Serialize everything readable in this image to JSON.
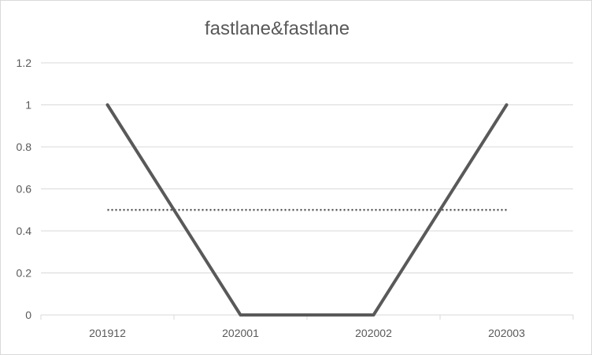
{
  "chart_data": {
    "type": "line",
    "title": "fastlane&fastlane",
    "xlabel": "",
    "ylabel": "",
    "categories": [
      "201912",
      "202001",
      "202002",
      "202003"
    ],
    "series": [
      {
        "values": [
          1,
          0,
          0,
          1
        ],
        "color": "#595959",
        "style": "solid"
      },
      {
        "values": [
          0.5,
          0.5,
          0.5,
          0.5
        ],
        "color": "#595959",
        "style": "dotted"
      }
    ],
    "ylim": [
      0,
      1.2
    ],
    "yticks": [
      "0",
      "0.2",
      "0.4",
      "0.6",
      "0.8",
      "1",
      "1.2"
    ],
    "grid": true,
    "legend": "none"
  }
}
